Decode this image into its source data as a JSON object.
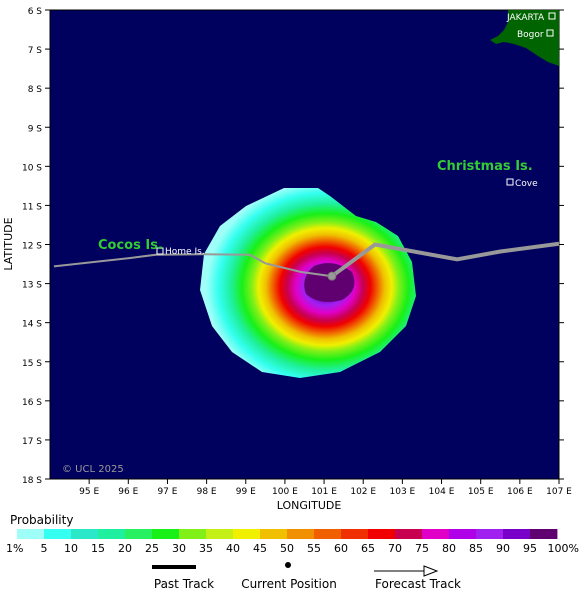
{
  "map": {
    "lat_ticks": [
      "6 S",
      "7 S",
      "8 S",
      "9 S",
      "10 S",
      "11 S",
      "12 S",
      "13 S",
      "14 S",
      "15 S",
      "16 S",
      "17 S",
      "18 S"
    ],
    "lon_ticks": [
      "95 E",
      "96 E",
      "97 E",
      "98 E",
      "99 E",
      "100 E",
      "101 E",
      "102 E",
      "103 E",
      "104 E",
      "105 E",
      "106 E",
      "107 E"
    ],
    "y_axis_label": "LATITUDE",
    "x_axis_label": "LONGITUDE",
    "copyright": "© UCL 2025",
    "ocean_color": "#00005e",
    "land_color": "#006400",
    "places": {
      "jakarta": "JAKARTA",
      "bogor": "Bogor",
      "christmas": "Christmas Is.",
      "cove": "Cove",
      "cocos": "Cocos Is.",
      "home": "Home Is."
    },
    "island_label_color": "#33cc33",
    "track_color": "#999999",
    "past_track": [
      [
        94.1,
        12.56
      ],
      [
        96.0,
        12.35
      ],
      [
        96.7,
        12.26
      ],
      [
        97.9,
        12.25
      ],
      [
        99.1,
        12.26
      ],
      [
        99.5,
        12.48
      ],
      [
        100.4,
        12.7
      ],
      [
        101.2,
        12.81
      ]
    ],
    "forecast_track": [
      [
        101.2,
        12.81
      ],
      [
        102.3,
        12.0
      ],
      [
        104.4,
        12.38
      ],
      [
        105.5,
        12.18
      ],
      [
        107.0,
        11.98
      ]
    ],
    "current_position": [
      101.2,
      12.81
    ]
  },
  "legend": {
    "title": "Probability",
    "labels": [
      "1%",
      "5",
      "10",
      "15",
      "20",
      "25",
      "30",
      "35",
      "40",
      "45",
      "50",
      "55",
      "60",
      "65",
      "70",
      "75",
      "80",
      "85",
      "90",
      "95",
      "100%"
    ],
    "colors": [
      "#9ffff8",
      "#34fff0",
      "#2be9c8",
      "#1ff0a0",
      "#28f060",
      "#18f018",
      "#80f018",
      "#c4f018",
      "#f0f000",
      "#f0c000",
      "#f09000",
      "#f06000",
      "#f03000",
      "#f00000",
      "#c80050",
      "#e000c8",
      "#b000e8",
      "#a020f0",
      "#7800c8",
      "#600070"
    ],
    "past_track": "Past Track",
    "current_position": "Current Position",
    "forecast_track": "Forecast Track"
  }
}
